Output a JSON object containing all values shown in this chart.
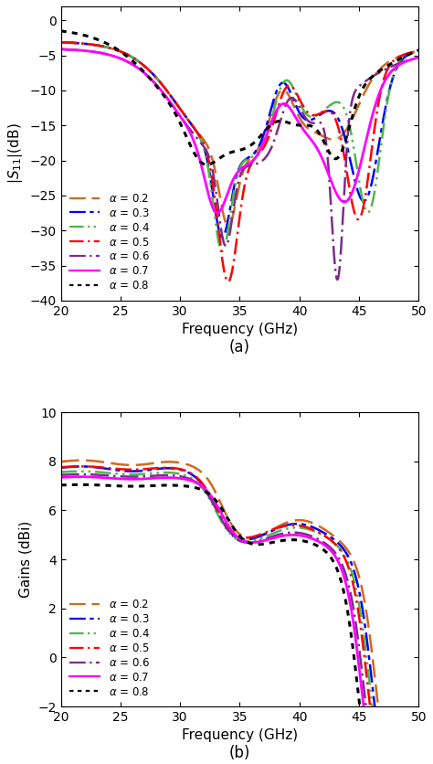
{
  "fig_width": 4.74,
  "fig_height": 8.36,
  "dpi": 100,
  "s11_ylim": [
    -40,
    2
  ],
  "gain_ylim": [
    -2,
    10
  ],
  "xlabel": "Frequency (GHz)",
  "s11_ylabel": "|S$_{11}$|(dB)",
  "gain_ylabel": "Gains (dBi)",
  "label_a": "(a)",
  "label_b": "(b)",
  "alphas": [
    0.2,
    0.3,
    0.4,
    0.5,
    0.6,
    0.7,
    0.8
  ],
  "colors": [
    "#D2691E",
    "#0000FF",
    "#4DB84D",
    "#FF0000",
    "#7B2D8B",
    "#FF00FF",
    "#000000"
  ],
  "linewidths": [
    1.8,
    1.8,
    1.8,
    1.8,
    1.8,
    2.0,
    2.2
  ]
}
